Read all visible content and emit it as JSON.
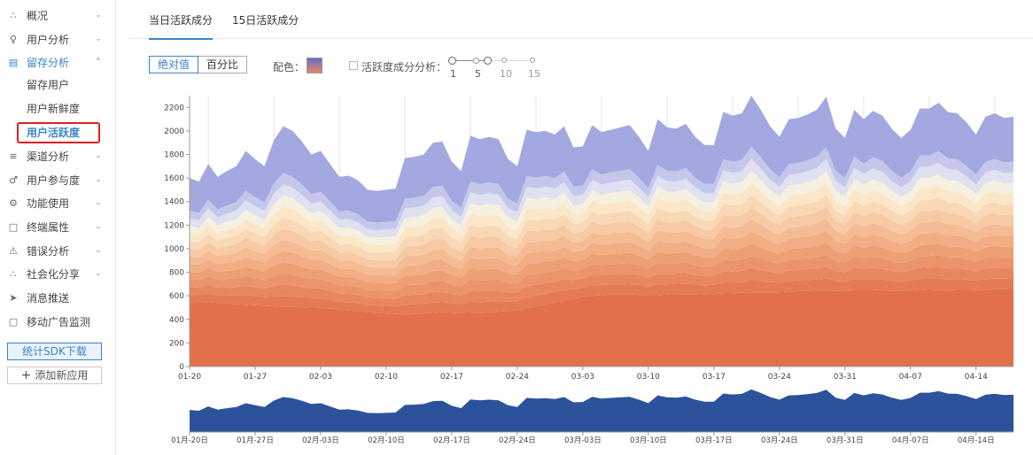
{
  "sidebar": {
    "items": [
      {
        "name": "overview",
        "label": "概况",
        "icon": "chart-icon",
        "expanded": false
      },
      {
        "name": "user-analysis",
        "label": "用户分析",
        "icon": "user-icon",
        "expanded": false
      },
      {
        "name": "retention-analysis",
        "label": "留存分析",
        "icon": "calendar-icon",
        "expanded": true,
        "children": [
          "留存用户",
          "用户新鲜度",
          "用户活跃度"
        ]
      },
      {
        "name": "channel-analysis",
        "label": "渠道分析",
        "icon": "funnel-icon",
        "expanded": false
      },
      {
        "name": "user-engagement",
        "label": "用户参与度",
        "icon": "engage-icon",
        "expanded": false
      },
      {
        "name": "feature-usage",
        "label": "功能使用",
        "icon": "gear-icon",
        "expanded": false
      },
      {
        "name": "device-attributes",
        "label": "终端属性",
        "icon": "device-icon",
        "expanded": false
      },
      {
        "name": "error-analysis",
        "label": "错误分析",
        "icon": "warning-icon",
        "expanded": false
      },
      {
        "name": "social-share",
        "label": "社会化分享",
        "icon": "share-icon",
        "expanded": false
      },
      {
        "name": "push-message",
        "label": "消息推送",
        "icon": "send-icon",
        "expanded": null
      },
      {
        "name": "mobile-ad",
        "label": "移动广告监测",
        "icon": "ad-icon",
        "expanded": null
      }
    ],
    "sdk_button": "统计SDK下载",
    "add_app_button": "添加新应用",
    "add_icon_glyph": "+"
  },
  "tabs": [
    "当日活跃成分",
    "15日活跃成分"
  ],
  "controls": {
    "mode_buttons": [
      "绝对值",
      "百分比"
    ],
    "color_label": "配色：",
    "composition_label": "活跃度成分分析：",
    "slider_labels": [
      "1",
      "5",
      "10",
      "15"
    ],
    "slider_value": [
      1,
      5
    ]
  },
  "chart_data": {
    "type": "area",
    "stacked": true,
    "yticks": [
      0,
      200,
      400,
      600,
      800,
      1000,
      1200,
      1400,
      1600,
      1800,
      2000,
      2200
    ],
    "ylim": [
      0,
      2300
    ],
    "x_ticks": [
      "01-20",
      "01-27",
      "02-03",
      "02-10",
      "02-17",
      "02-24",
      "03-03",
      "03-10",
      "03-17",
      "03-24",
      "03-31",
      "04-07",
      "04-14"
    ],
    "brush_ticks": [
      "01月-20日",
      "01月-27日",
      "02月-03日",
      "02月-10日",
      "02月-17日",
      "02月-24日",
      "03月-03日",
      "03月-10日",
      "03月-17日",
      "03月-24日",
      "03月-31日",
      "04月-07日",
      "04月-14日"
    ],
    "totals": [
      1600,
      1570,
      1720,
      1610,
      1660,
      1700,
      1830,
      1760,
      1700,
      1920,
      2040,
      2000,
      1910,
      1800,
      1830,
      1720,
      1610,
      1620,
      1580,
      1500,
      1490,
      1500,
      1510,
      1770,
      1780,
      1800,
      1900,
      1910,
      1740,
      1660,
      1960,
      1930,
      1950,
      1930,
      1760,
      1700,
      2010,
      1990,
      2000,
      1970,
      2040,
      1860,
      1870,
      2050,
      1990,
      2010,
      2030,
      2050,
      1950,
      1830,
      2100,
      2030,
      2020,
      2060,
      1950,
      1880,
      1880,
      2160,
      2130,
      2150,
      2300,
      2180,
      2040,
      1950,
      2100,
      2110,
      2140,
      2180,
      2290,
      2020,
      1940,
      2180,
      2100,
      2170,
      2130,
      2020,
      1940,
      2010,
      2190,
      2190,
      2240,
      2160,
      2150,
      2070,
      1970,
      2120,
      2150,
      2110,
      2120
    ],
    "base_series": [
      540,
      550,
      545,
      540,
      535,
      530,
      525,
      520,
      515,
      510,
      505,
      505,
      500,
      505,
      495,
      490,
      480,
      475,
      470,
      460,
      455,
      450,
      445,
      440,
      445,
      450,
      455,
      460,
      458,
      455,
      460,
      455,
      460,
      465,
      470,
      480,
      495,
      510,
      525,
      545,
      560,
      575,
      590,
      600,
      605,
      610,
      610,
      610,
      608,
      605,
      605,
      610,
      615,
      615,
      615,
      610,
      615,
      620,
      620,
      625,
      630,
      630,
      630,
      630,
      635,
      640,
      640,
      645,
      645,
      640,
      640,
      650,
      650,
      650,
      645,
      640,
      640,
      645,
      650,
      655,
      650,
      645,
      650,
      650,
      648,
      650,
      655,
      655,
      660
    ],
    "layer_count": 14
  }
}
